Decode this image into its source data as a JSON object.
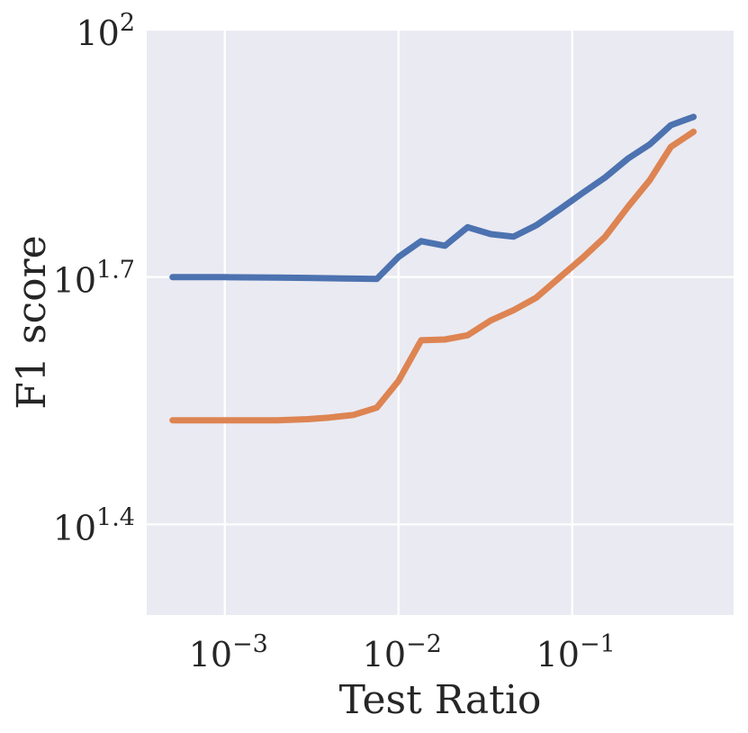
{
  "chart_data": {
    "type": "line",
    "xlabel": "Test Ratio",
    "ylabel": "F1 score",
    "xscale": "log",
    "yscale": "log",
    "xlim": [
      0.000355,
      0.85
    ],
    "ylim": [
      19.5,
      100
    ],
    "grid": true,
    "x_ticks": [
      {
        "value": 0.001,
        "base": "10",
        "exp": "−3"
      },
      {
        "value": 0.01,
        "base": "10",
        "exp": "−2"
      },
      {
        "value": 0.1,
        "base": "10",
        "exp": "−1"
      }
    ],
    "y_ticks": [
      {
        "value": 25.12,
        "base": "10",
        "exp": "1.4"
      },
      {
        "value": 50.12,
        "base": "10",
        "exp": "1.7"
      },
      {
        "value": 100,
        "base": "10",
        "exp": "2"
      }
    ],
    "colors": [
      "#4c72b0",
      "#dd8452"
    ],
    "series": [
      {
        "x": [
          0.0005,
          0.001,
          0.002,
          0.003,
          0.004,
          0.0055,
          0.0075,
          0.01,
          0.0135,
          0.0185,
          0.025,
          0.034,
          0.046,
          0.062,
          0.085,
          0.115,
          0.155,
          0.21,
          0.28,
          0.37,
          0.5
        ],
        "y": [
          50.1,
          50.1,
          50.05,
          50.0,
          49.95,
          49.9,
          49.85,
          53.0,
          55.4,
          54.7,
          57.6,
          56.5,
          56.1,
          57.9,
          60.6,
          63.4,
          66.2,
          69.8,
          72.6,
          76.6,
          78.4
        ]
      },
      {
        "x": [
          0.0005,
          0.001,
          0.002,
          0.003,
          0.004,
          0.0055,
          0.0075,
          0.01,
          0.0135,
          0.0185,
          0.025,
          0.034,
          0.046,
          0.062,
          0.085,
          0.115,
          0.155,
          0.21,
          0.28,
          0.37,
          0.5
        ],
        "y": [
          33.6,
          33.6,
          33.6,
          33.7,
          33.85,
          34.1,
          34.8,
          37.5,
          42.0,
          42.1,
          42.6,
          44.4,
          45.7,
          47.3,
          50.1,
          52.9,
          56.1,
          61.0,
          65.7,
          72.1,
          75.2
        ]
      }
    ]
  }
}
